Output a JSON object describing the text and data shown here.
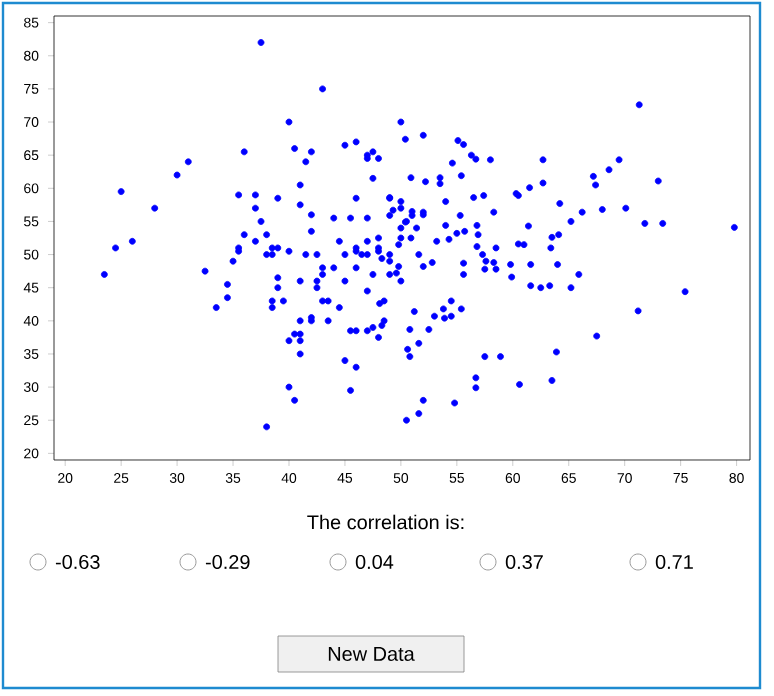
{
  "chart_data": {
    "type": "scatter",
    "x": [
      37.5,
      43,
      40,
      50,
      52,
      31,
      36,
      40.5,
      42,
      45,
      46,
      47,
      47.5,
      47,
      48,
      41.5,
      30,
      47.5,
      28,
      25,
      35.5,
      37,
      39,
      37,
      37.5,
      41,
      41,
      42,
      44,
      45.5,
      47,
      46,
      49,
      50,
      42,
      38,
      37,
      36,
      35.5,
      38.5,
      39,
      40,
      42.5,
      44.5,
      46,
      47,
      48,
      48,
      49,
      50,
      50,
      51,
      52,
      24.5,
      26,
      50.5,
      23.5,
      32.5,
      33.5,
      34.5,
      34.5,
      35,
      35.5,
      38,
      38.5,
      38.5,
      38.5,
      39,
      39,
      39.5,
      40,
      40.5,
      41,
      41,
      41,
      41,
      41,
      41.5,
      42,
      42,
      42.5,
      42.5,
      43,
      43,
      43,
      43.5,
      43.5,
      44,
      44.5,
      45,
      45,
      45.5,
      45.5,
      46,
      46,
      46,
      46,
      47,
      47,
      47,
      47.5,
      47.5,
      48,
      48,
      48.5,
      48.5,
      49,
      49,
      50,
      40,
      40.5,
      38,
      45,
      46.5,
      75.4,
      71.2,
      67.5,
      63.9,
      63.5,
      60.6,
      58.9,
      57.5,
      56.7,
      56.7,
      54.8,
      52,
      51.6,
      50.5,
      50.8,
      50.6,
      51.6,
      52.5,
      50.8,
      51.2,
      48.3,
      53,
      53.9,
      54.5,
      55.4,
      53.8,
      54.5,
      59.9,
      59.8,
      61.6,
      62.5,
      63.3,
      65.2,
      65.9,
      64,
      63.4,
      61.6,
      60.5,
      61,
      58.5,
      57.6,
      58.3,
      57.5,
      58.5,
      55.6,
      55.6,
      56.8,
      57.3,
      53.2,
      51.6,
      50.9,
      52.8,
      52,
      49.8,
      49.6,
      49.8,
      48.1,
      48.3,
      71.3,
      50.4,
      55.1,
      55.6,
      56.3,
      56.7,
      58,
      62.7,
      69.5,
      54.6,
      68.6,
      55.4,
      50.9,
      52.2,
      53.5,
      53.5,
      67.2,
      67.4,
      73,
      62.7,
      61.5,
      60.3,
      60.5,
      56.5,
      57.4,
      50,
      49,
      54,
      64.2,
      58.3,
      66.2,
      68,
      70.1,
      71.8,
      73.4,
      79.8,
      65.2,
      61.4,
      49.3,
      49,
      51,
      52,
      50.4,
      51.4,
      54,
      55.3,
      56.8,
      55,
      55.7,
      56.9,
      54.3,
      63.5,
      64.1
    ],
    "values": [
      82,
      75,
      70,
      70,
      68,
      64,
      65.5,
      66,
      65.5,
      66.5,
      67,
      65,
      65.5,
      64.5,
      64.5,
      64,
      62,
      61.5,
      57,
      59.5,
      59,
      59,
      58.5,
      57,
      55,
      60.5,
      57.5,
      56,
      55.5,
      55.5,
      55.5,
      58.5,
      58.5,
      57,
      53.5,
      53,
      52,
      53,
      50.5,
      50,
      51,
      50.5,
      50,
      52,
      50.5,
      52,
      52.5,
      51,
      50,
      54,
      52.5,
      56.5,
      56,
      51,
      52,
      55,
      47,
      47.5,
      42,
      45.5,
      43.5,
      49,
      51,
      50,
      51,
      43,
      42,
      46.5,
      45,
      43,
      37,
      38,
      38,
      40,
      35,
      37,
      46,
      50,
      40.5,
      40,
      46,
      45,
      47,
      43,
      48,
      40,
      43,
      48,
      42,
      50,
      34,
      38.5,
      29.5,
      33,
      38.5,
      48,
      51,
      38.5,
      44.5,
      50,
      39,
      47,
      37.5,
      50.5,
      40,
      43,
      49,
      47,
      46,
      30,
      28,
      24,
      46,
      50,
      44.4,
      41.5,
      37.7,
      35.3,
      31,
      30.4,
      34.6,
      34.6,
      31.4,
      29.9,
      27.6,
      28,
      26,
      25,
      34.6,
      35.7,
      36.6,
      38.7,
      38.7,
      41.4,
      39.3,
      40.7,
      40.4,
      43,
      41.8,
      41.8,
      40.7,
      46.6,
      48.5,
      45.3,
      45,
      45.3,
      45,
      47,
      48.5,
      51,
      48.5,
      51.6,
      51.5,
      51,
      49,
      48.8,
      47.8,
      47.8,
      47,
      48.7,
      51.2,
      50,
      52,
      50,
      52.5,
      48.8,
      48.2,
      48.2,
      47.2,
      51.5,
      42.6,
      49.4,
      72.6,
      67.4,
      67.2,
      66.6,
      65,
      64.4,
      64.3,
      64.3,
      64.3,
      63.8,
      62.8,
      61.9,
      61.6,
      61,
      61.6,
      60.7,
      61.8,
      60.5,
      61.1,
      60.8,
      60.1,
      59.2,
      58.9,
      58.6,
      58.9,
      58,
      58.6,
      58,
      57.7,
      56.4,
      56.4,
      56.8,
      57,
      54.7,
      54.7,
      54.1,
      55,
      54.3,
      56.7,
      55.9,
      55.9,
      56.4,
      54.9,
      54,
      54.4,
      55.9,
      54.4,
      53.2,
      53.5,
      53,
      52.3,
      52.6,
      53
    ],
    "color": "#0000ff",
    "grid": false,
    "xlim": [
      19,
      81.2
    ],
    "ylim": [
      19,
      86
    ],
    "xticks": [
      20,
      25,
      30,
      35,
      40,
      45,
      50,
      55,
      60,
      65,
      70,
      75,
      80
    ],
    "yticks": [
      20,
      25,
      30,
      35,
      40,
      45,
      50,
      55,
      60,
      65,
      70,
      75,
      80,
      85
    ],
    "annotations": [
      "The correlation is:",
      "-0.63",
      "-0.29",
      "0.04",
      "0.37",
      "0.71",
      "New Data"
    ]
  }
}
